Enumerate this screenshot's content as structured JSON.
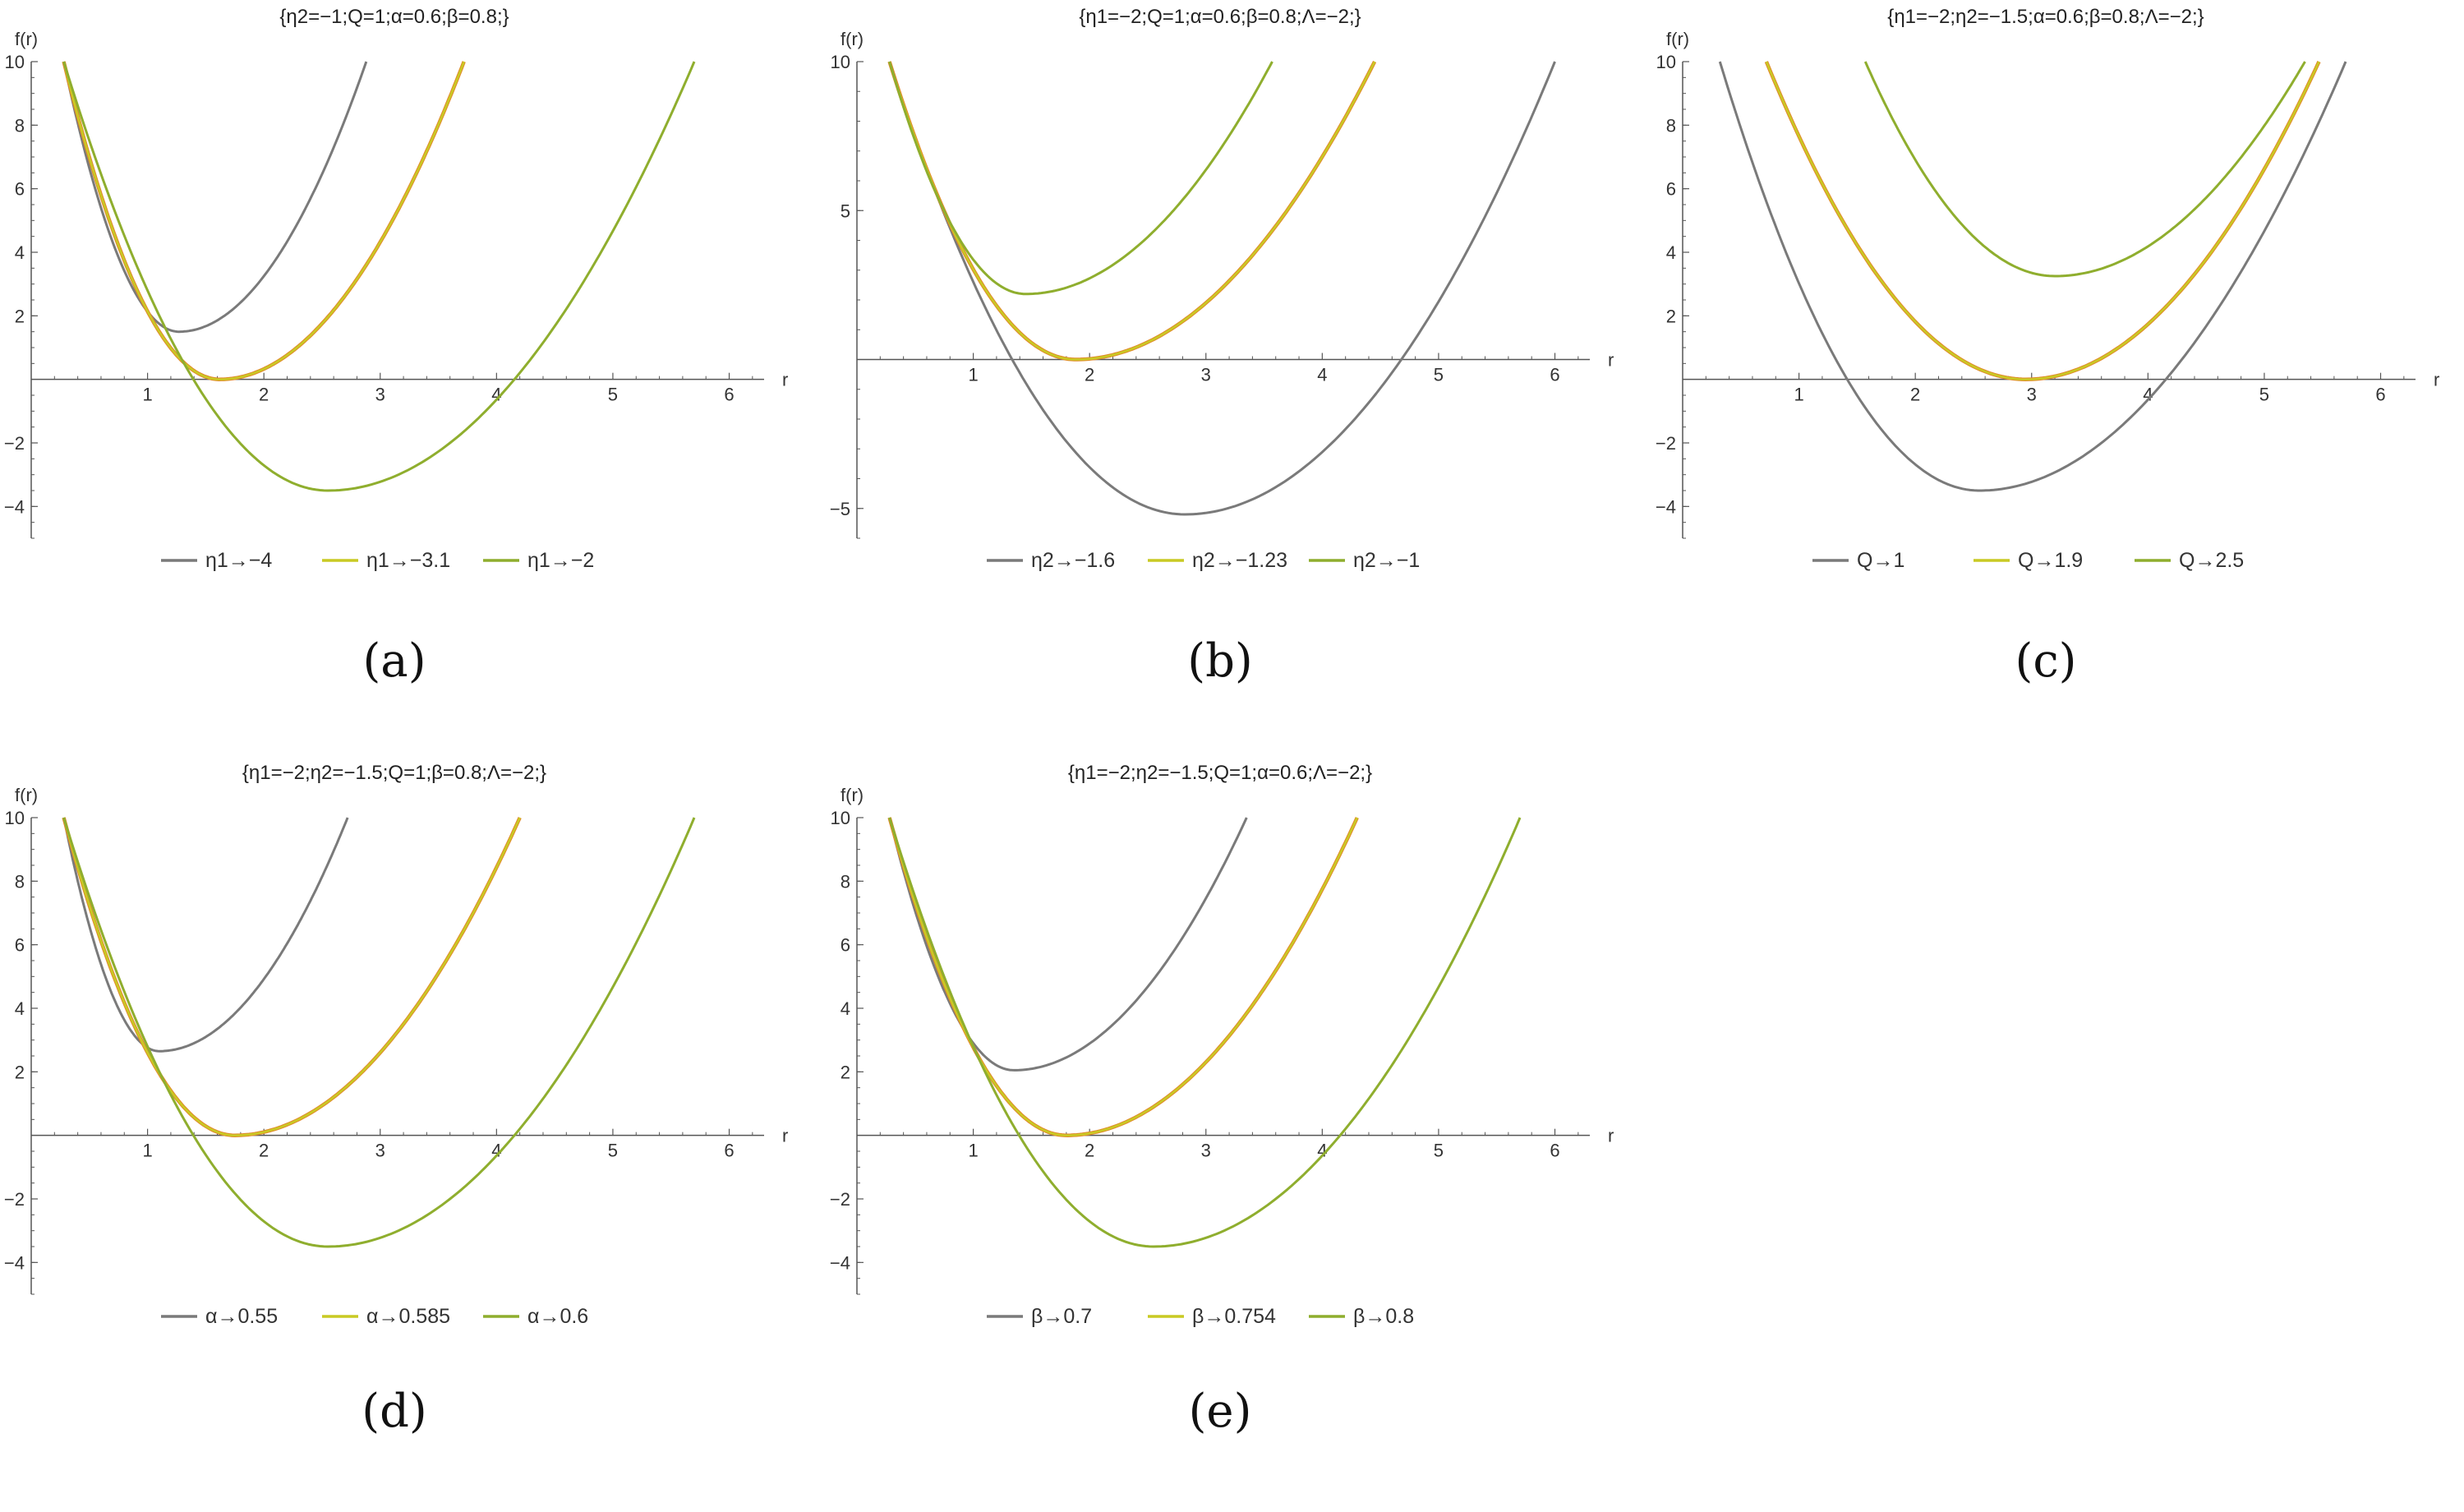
{
  "colors": {
    "series1": "#7a7a7a",
    "series2": "#c9ca24",
    "series2_edge": "#e08a2a",
    "series3": "#8fae2e",
    "axis": "#555555"
  },
  "chart_data": [
    {
      "type": "line",
      "panel_label": "(a)",
      "title": "{η2=−1;Q=1;α=0.6;β=0.8;}",
      "xlabel": "r",
      "ylabel": "f(r)",
      "xlim": [
        0,
        6.3
      ],
      "ylim": [
        -5,
        10
      ],
      "xticks": [
        1,
        2,
        3,
        4,
        5,
        6
      ],
      "yticks": [
        -4,
        -2,
        2,
        4,
        6,
        8,
        10
      ],
      "grid": false,
      "legend_position": "bottom",
      "series": [
        {
          "name": "η1→−4",
          "min_x": 1.27,
          "min_y": 1.5,
          "x_start": 0.28,
          "x_end": 2.88
        },
        {
          "name": "η1→−3.1",
          "min_x": 1.62,
          "min_y": 0.0,
          "x_start": 0.28,
          "x_end": 3.72
        },
        {
          "name": "η1→−2",
          "min_x": 2.55,
          "min_y": -3.5,
          "x_start": 0.28,
          "x_end": 5.7
        }
      ]
    },
    {
      "type": "line",
      "panel_label": "(b)",
      "title": "{η1=−2;Q=1;α=0.6;β=0.8;Λ=−2;}",
      "xlabel": "r",
      "ylabel": "f(r)",
      "xlim": [
        0,
        6.3
      ],
      "ylim": [
        -6,
        10
      ],
      "xticks": [
        1,
        2,
        3,
        4,
        5,
        6
      ],
      "yticks": [
        -5,
        5,
        10
      ],
      "grid": false,
      "legend_position": "bottom",
      "series": [
        {
          "name": "η2→−1.6",
          "min_x": 2.82,
          "min_y": -5.2,
          "x_start": 0.28,
          "x_end": 6.0
        },
        {
          "name": "η2→−1.23",
          "min_x": 1.88,
          "min_y": 0.0,
          "x_start": 0.28,
          "x_end": 4.45
        },
        {
          "name": "η2→−1",
          "min_x": 1.45,
          "min_y": 2.2,
          "x_start": 0.28,
          "x_end": 3.57
        }
      ]
    },
    {
      "type": "line",
      "panel_label": "(c)",
      "title": "{η1=−2;η2=−1.5;α=0.6;β=0.8;Λ=−2;}",
      "xlabel": "r",
      "ylabel": "f(r)",
      "xlim": [
        0,
        6.3
      ],
      "ylim": [
        -5,
        10
      ],
      "xticks": [
        1,
        2,
        3,
        4,
        5,
        6
      ],
      "yticks": [
        -4,
        -2,
        2,
        4,
        6,
        8,
        10
      ],
      "grid": false,
      "legend_position": "bottom",
      "series": [
        {
          "name": "Q→1",
          "min_x": 2.55,
          "min_y": -3.5,
          "x_start": 0.32,
          "x_end": 5.7
        },
        {
          "name": "Q→1.9",
          "min_x": 2.95,
          "min_y": 0.0,
          "x_start": 0.72,
          "x_end": 5.47
        },
        {
          "name": "Q→2.5",
          "min_x": 3.2,
          "min_y": 3.25,
          "x_start": 1.57,
          "x_end": 5.35
        }
      ]
    },
    {
      "type": "line",
      "panel_label": "(d)",
      "title": "{η1=−2;η2=−1.5;Q=1;β=0.8;Λ=−2;}",
      "xlabel": "r",
      "ylabel": "f(r)",
      "xlim": [
        0,
        6.3
      ],
      "ylim": [
        -5,
        10
      ],
      "xticks": [
        1,
        2,
        3,
        4,
        5,
        6
      ],
      "yticks": [
        -4,
        -2,
        2,
        4,
        6,
        8,
        10
      ],
      "grid": false,
      "legend_position": "bottom",
      "series": [
        {
          "name": "α→0.55",
          "min_x": 1.1,
          "min_y": 2.65,
          "x_start": 0.28,
          "x_end": 2.72
        },
        {
          "name": "α→0.585",
          "min_x": 1.75,
          "min_y": 0.0,
          "x_start": 0.28,
          "x_end": 4.2
        },
        {
          "name": "α→0.6",
          "min_x": 2.55,
          "min_y": -3.5,
          "x_start": 0.28,
          "x_end": 5.7
        }
      ]
    },
    {
      "type": "line",
      "panel_label": "(e)",
      "title": "{η1=−2;η2=−1.5;Q=1;α=0.6;Λ=−2;}",
      "xlabel": "r",
      "ylabel": "f(r)",
      "xlim": [
        0,
        6.3
      ],
      "ylim": [
        -5,
        10
      ],
      "xticks": [
        1,
        2,
        3,
        4,
        5,
        6
      ],
      "yticks": [
        -4,
        -2,
        2,
        4,
        6,
        8,
        10
      ],
      "grid": false,
      "legend_position": "bottom",
      "series": [
        {
          "name": "β→0.7",
          "min_x": 1.35,
          "min_y": 2.05,
          "x_start": 0.28,
          "x_end": 3.35
        },
        {
          "name": "β→0.754",
          "min_x": 1.8,
          "min_y": 0.0,
          "x_start": 0.28,
          "x_end": 4.3
        },
        {
          "name": "β→0.8",
          "min_x": 2.55,
          "min_y": -3.5,
          "x_start": 0.28,
          "x_end": 5.7
        }
      ]
    }
  ]
}
